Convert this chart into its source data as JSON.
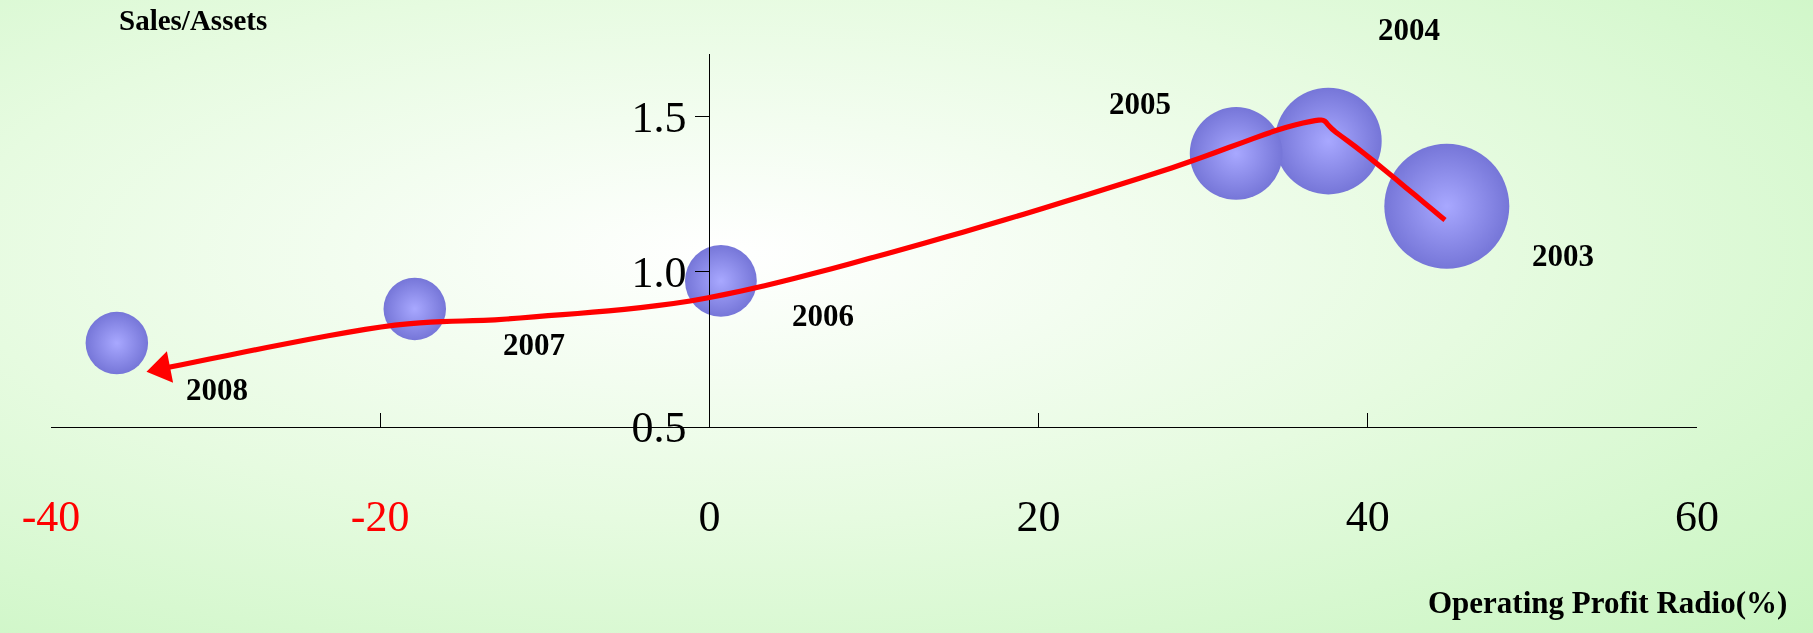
{
  "chart_data": {
    "type": "bubble",
    "xlabel": "Operating Profit Radio(%)",
    "ylabel": "Sales/Assets",
    "xlim": [
      -40,
      60
    ],
    "ylim": [
      0.5,
      1.7
    ],
    "xticks": [
      -40,
      -20,
      0,
      20,
      40,
      60
    ],
    "yticks": [
      {
        "value": 0.5,
        "label": "0.5"
      },
      {
        "value": 1,
        "label": "1.0"
      },
      {
        "value": 1.5,
        "label": "1.5"
      }
    ],
    "series": [
      {
        "color": "#7676d8",
        "x": [
          44.8,
          37.6,
          32.0,
          0.7,
          -17.9,
          -36.0
        ],
        "values": [
          1.21,
          1.42,
          1.38,
          0.97,
          0.88,
          0.77
        ],
        "sizes": [
          1,
          0.73,
          0.55,
          0.33,
          0.25,
          0.25
        ]
      }
    ],
    "annotations": [
      {
        "text": "2003",
        "x": 44.8,
        "y": 1.21
      },
      "2004",
      {
        "text": "2005",
        "x": 32.0,
        "y": 1.38
      },
      {
        "text": "2006",
        "x": 0.7,
        "y": 0.97
      },
      {
        "text": "2007",
        "x": -17.9,
        "y": 0.88
      },
      {
        "text": "2008",
        "x": -36.0,
        "y": 0.77
      }
    ]
  }
}
